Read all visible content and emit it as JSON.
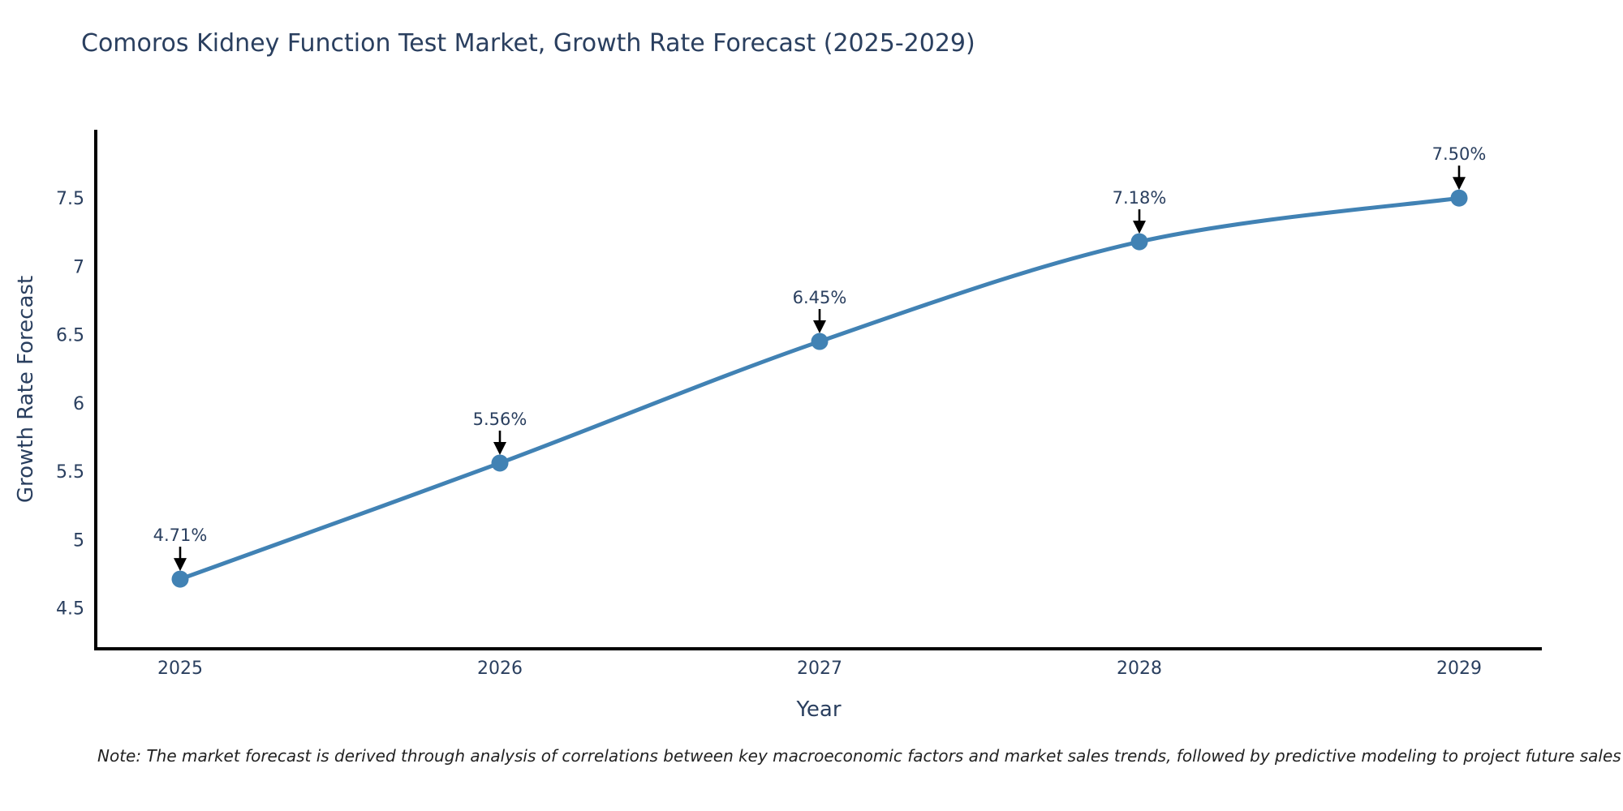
{
  "chart_data": {
    "type": "line",
    "title": "Comoros Kidney Function Test Market, Growth Rate Forecast (2025-2029)",
    "xlabel": "Year",
    "ylabel": "Growth Rate Forecast",
    "categories": [
      "2025",
      "2026",
      "2027",
      "2028",
      "2029"
    ],
    "series": [
      {
        "name": "Growth Rate Forecast",
        "values": [
          4.71,
          5.56,
          6.45,
          7.18,
          7.5
        ]
      }
    ],
    "point_labels": [
      "4.71%",
      "5.56%",
      "6.45%",
      "7.18%",
      "7.50%"
    ],
    "yticks": [
      4.5,
      5,
      5.5,
      6,
      6.5,
      7,
      7.5
    ],
    "ylim": [
      4.2,
      8.0
    ],
    "line_shape": "spline",
    "grid": false,
    "legend": "none",
    "background": "#ffffff",
    "colors": {
      "line": "#4182B4",
      "marker": "#4182B4",
      "axis": "#000000",
      "tick_text": "#2A3F5F",
      "annotation_text": "#2A3F5F",
      "annotation_arrow": "#000000"
    },
    "note": "Note: The market forecast is derived through analysis of correlations between key macroeconomic factors and market sales trends, followed by predictive modeling to project future sales"
  }
}
